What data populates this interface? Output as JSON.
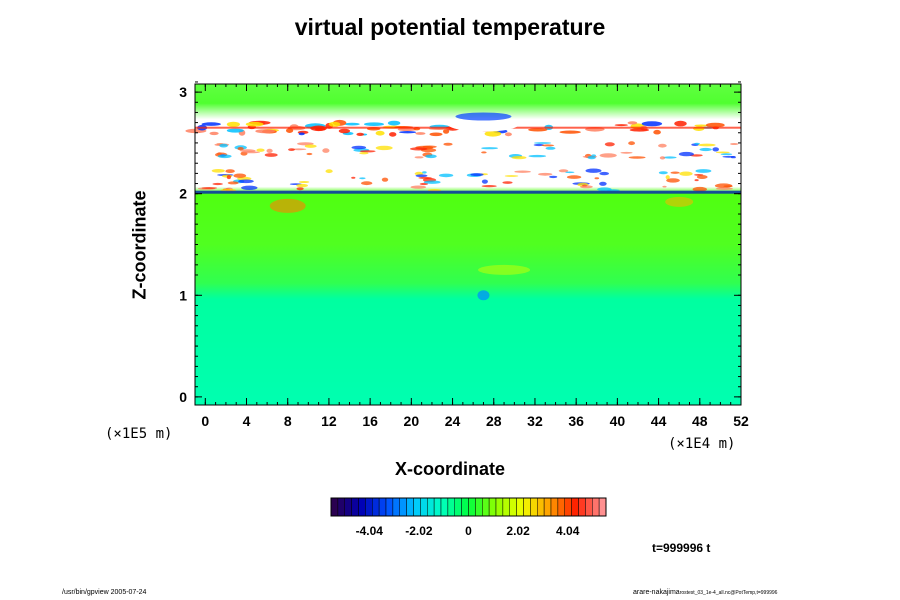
{
  "chart_data": {
    "type": "heatmap",
    "title": "virtual potential temperature",
    "xlabel": "X-coordinate",
    "ylabel": "Z-coordinate",
    "x_scale_note": "(×1E4 m)",
    "z_scale_note": "(×1E5 m)",
    "xlim": [
      -1,
      52
    ],
    "ylim": [
      -0.08,
      3.08
    ],
    "x_ticks": [
      "0",
      "4",
      "8",
      "12",
      "16",
      "20",
      "24",
      "28",
      "32",
      "36",
      "40",
      "44",
      "48",
      "52"
    ],
    "y_ticks": [
      "0",
      "1",
      "2",
      "3"
    ],
    "colorbar": {
      "ticks": [
        "-4.04",
        "-2.02",
        "0",
        "2.02",
        "4.04"
      ],
      "range": [
        -5.6,
        5.6
      ],
      "colors": [
        "#2a0050",
        "#0000b4",
        "#0050ff",
        "#00c8ff",
        "#00ffc0",
        "#00ff40",
        "#8cff00",
        "#f0ff00",
        "#ffa000",
        "#ff2000",
        "#ff9090"
      ]
    },
    "layers": [
      {
        "z_range": [
          0.0,
          0.3
        ],
        "value": -1.6
      },
      {
        "z_range": [
          0.3,
          1.1
        ],
        "value": -1.4
      },
      {
        "z_range": [
          1.1,
          1.3
        ],
        "value": -0.6
      },
      {
        "z_range": [
          1.3,
          1.9
        ],
        "value": 0.6
      },
      {
        "z_range": [
          1.9,
          2.0
        ],
        "value": 1.0
      },
      {
        "z_range": [
          2.0,
          2.7
        ],
        "value": "out-of-range (white) with strong +/- bands"
      },
      {
        "z_range": [
          2.7,
          3.08
        ],
        "value": 0.4
      }
    ]
  },
  "annotations": {
    "time": "t=999996 t"
  },
  "footer": {
    "left": "/usr/bin/gpview 2005-07-24",
    "right_main": "arare-nakajima",
    "right_small": "rostest_03_1e-4_all.nc@PotTemp,t=999996"
  }
}
